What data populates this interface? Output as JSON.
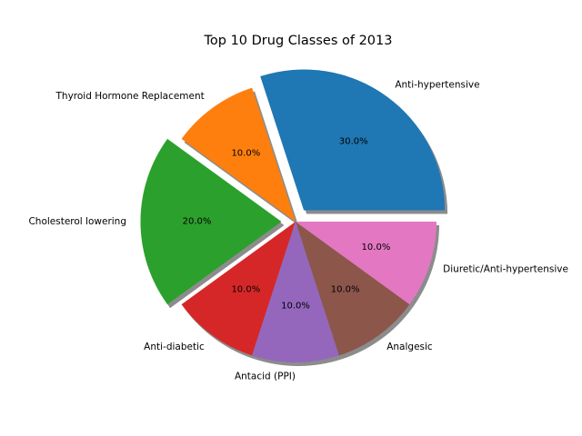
{
  "chart_data": {
    "type": "pie",
    "title": "Top 10 Drug Classes of 2013",
    "start_angle_deg": 0,
    "direction": "counterclockwise",
    "shadow": true,
    "slices": [
      {
        "label": "Anti-hypertensive",
        "value": 30,
        "pct_label": "30.0%",
        "color": "#1f77b4",
        "exploded": true
      },
      {
        "label": "Thyroid Hormone Replacement",
        "value": 10,
        "pct_label": "10.0%",
        "color": "#ff7f0e",
        "exploded": false
      },
      {
        "label": "Cholesterol lowering",
        "value": 20,
        "pct_label": "20.0%",
        "color": "#2ca02c",
        "exploded": true
      },
      {
        "label": "Anti-diabetic",
        "value": 10,
        "pct_label": "10.0%",
        "color": "#d62728",
        "exploded": false
      },
      {
        "label": "Antacid (PPI)",
        "value": 10,
        "pct_label": "10.0%",
        "color": "#9467bd",
        "exploded": false
      },
      {
        "label": "Analgesic",
        "value": 10,
        "pct_label": "10.0%",
        "color": "#8c564b",
        "exploded": false
      },
      {
        "label": "Diuretic/Anti-hypertensive",
        "value": 10,
        "pct_label": "10.0%",
        "color": "#e377c2",
        "exploded": false
      }
    ]
  }
}
